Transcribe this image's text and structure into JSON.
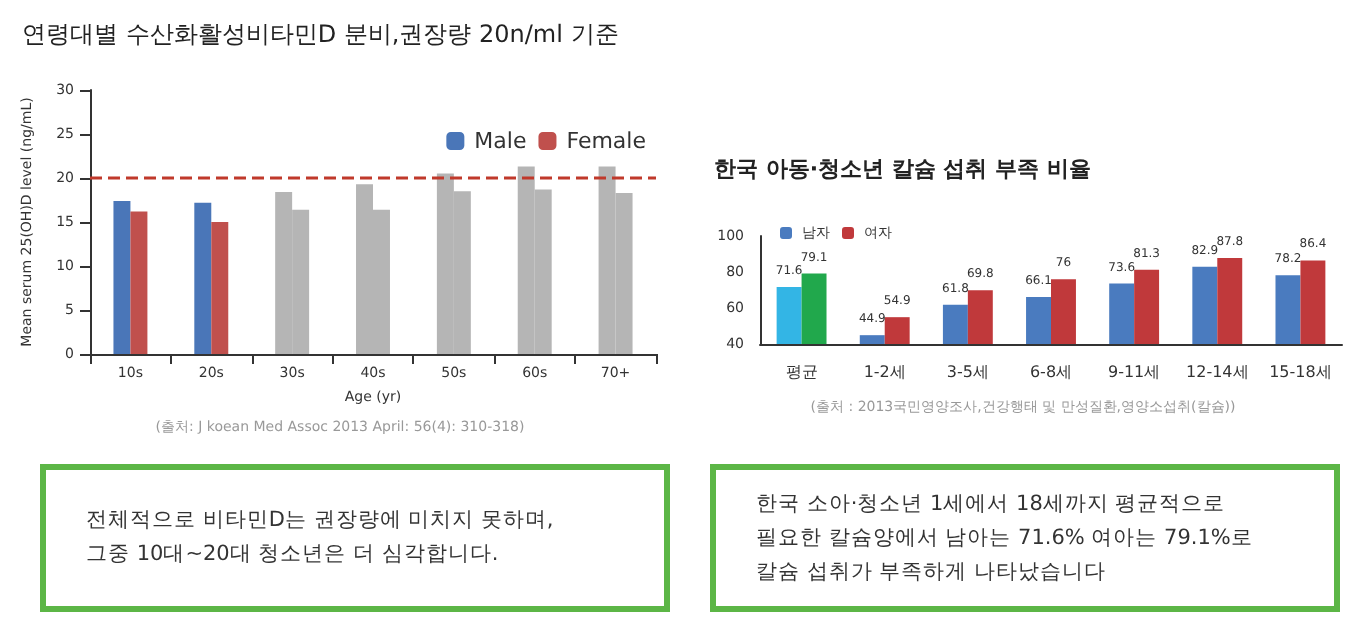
{
  "chart_data": [
    {
      "type": "bar",
      "title": "연령대별 수산화활성비타민D 분비,권장량 20n/ml 기준",
      "xlabel": "Age (yr)",
      "ylabel": "Mean serum 25(OH)D level (ng/mL)",
      "categories": [
        "10s",
        "20s",
        "30s",
        "40s",
        "50s",
        "60s",
        "70+"
      ],
      "series": [
        {
          "name": "Male",
          "color": "#4a76b8",
          "colors": [
            "#4a76b8",
            "#4a76b8",
            "#b5b5b5",
            "#b5b5b5",
            "#b5b5b5",
            "#b5b5b5",
            "#b5b5b5"
          ],
          "values": [
            17.4,
            17.2,
            18.4,
            19.3,
            20.5,
            21.3,
            21.3
          ]
        },
        {
          "name": "Female",
          "color": "#c0504d",
          "colors": [
            "#c0504d",
            "#c0504d",
            "#b5b5b5",
            "#b5b5b5",
            "#b5b5b5",
            "#b5b5b5",
            "#b5b5b5"
          ],
          "values": [
            16.2,
            15.0,
            16.4,
            16.4,
            18.5,
            18.7,
            18.3
          ]
        }
      ],
      "ylim": [
        0,
        30
      ],
      "yticks": [
        0,
        5,
        10,
        15,
        20,
        25,
        30
      ],
      "legend": "top right",
      "ref_lines": [
        {
          "axis": "y",
          "value": 20,
          "label": null,
          "color": "#c0392b",
          "line_style": "dashed"
        }
      ],
      "annotations": [
        "(출처: J koean Med Assoc 2013 April: 56(4): 310-318)"
      ]
    },
    {
      "type": "bar",
      "title": "한국 아동·청소년 칼슘 섭취 부족 비율",
      "categories": [
        "평균",
        "1-2세",
        "3-5세",
        "6-8세",
        "9-11세",
        "12-14세",
        "15-18세"
      ],
      "series": [
        {
          "name": "남자",
          "color": "#4a7bbf",
          "colors": [
            "#33b5e5",
            "#4a7bbf",
            "#4a7bbf",
            "#4a7bbf",
            "#4a7bbf",
            "#4a7bbf",
            "#4a7bbf"
          ],
          "values": [
            71.6,
            44.9,
            61.8,
            66.1,
            73.6,
            82.9,
            78.2
          ]
        },
        {
          "name": "여자",
          "color": "#c0393b",
          "colors": [
            "#21a84c",
            "#c0393b",
            "#c0393b",
            "#c0393b",
            "#c0393b",
            "#c0393b",
            "#c0393b"
          ],
          "values": [
            79.1,
            54.9,
            69.8,
            76,
            81.3,
            87.8,
            86.4
          ]
        }
      ],
      "ylim": [
        40,
        100
      ],
      "yticks": [
        40,
        60,
        80,
        100
      ],
      "legend": "top left",
      "data_labels": true,
      "annotations": [
        "(출처 : 2013국민영양조사,건강행태 및 만성질환,영양소섭취(칼슘))"
      ]
    },
    {
      "type": "other",
      "annotations": [
        "전체적으로 비타민D는 권장량에 미치지 못하며,",
        "그중 10대~20대 청소년은 더 심각합니다."
      ]
    },
    {
      "type": "other",
      "annotations": [
        "한국 소아·청소년 1세에서 18세까지 평균적으로",
        "필요한 칼슘양에서 남아는 71.6% 여아는 79.1%로",
        "칼슘 섭취가 부족하게 나타났습니다"
      ]
    }
  ]
}
